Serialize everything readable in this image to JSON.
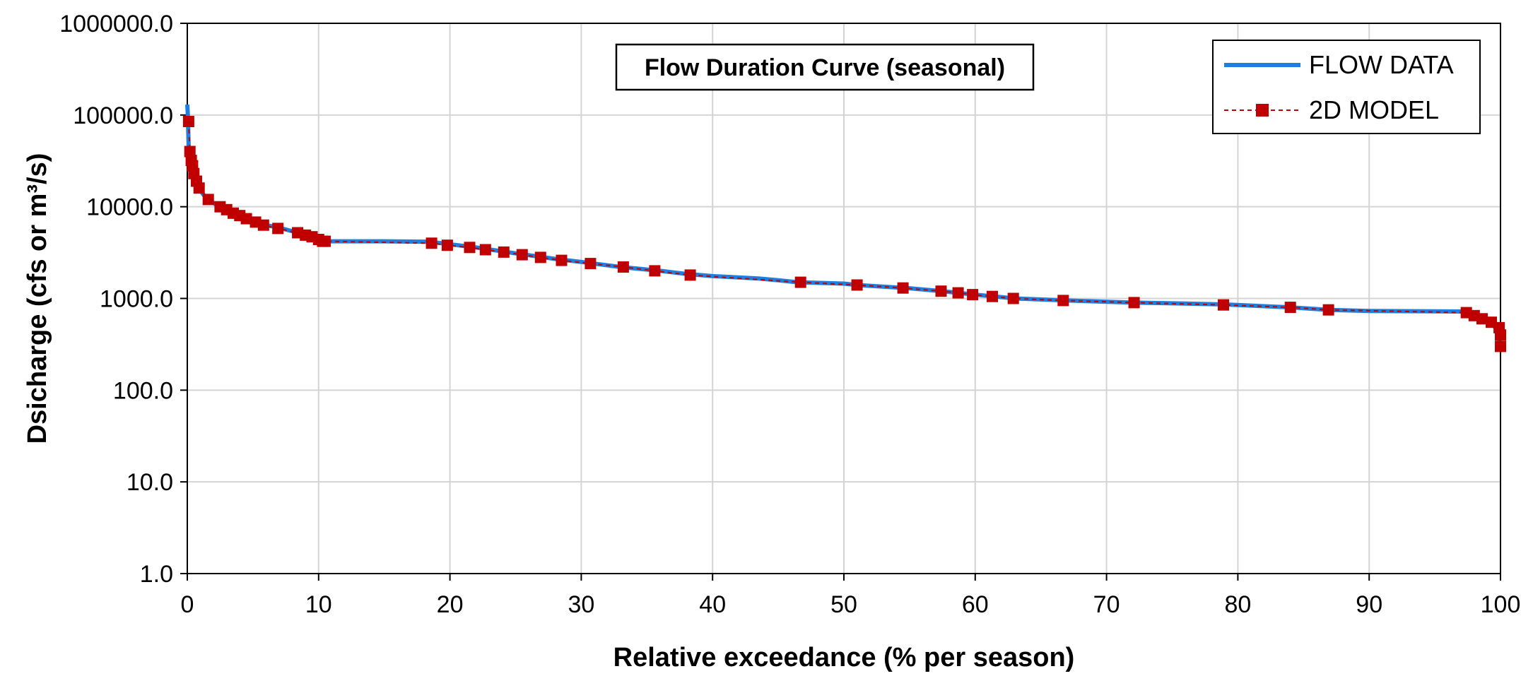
{
  "chart_data": {
    "type": "line",
    "title": "Flow Duration Curve (seasonal)",
    "xlabel": "Relative exceedance (% per season)",
    "ylabel": "Dsicharge (cfs or m³/s)",
    "xlim": [
      0,
      100
    ],
    "ylim": [
      1,
      1000000
    ],
    "yscale": "log",
    "grid": true,
    "legend_position": "top-right",
    "x_ticks": [
      "0",
      "10",
      "20",
      "30",
      "40",
      "50",
      "60",
      "70",
      "80",
      "90",
      "100"
    ],
    "y_ticks": [
      "1.0",
      "10.0",
      "100.0",
      "1000.0",
      "10000.0",
      "100000.0",
      "1000000.0"
    ],
    "series": [
      {
        "name": "FLOW DATA",
        "color": "#1e7fe0",
        "style": "solid",
        "x": [
          0,
          0.05,
          0.1,
          0.2,
          0.3,
          0.5,
          0.7,
          1,
          1.5,
          2,
          2.5,
          3,
          3.5,
          4,
          4.5,
          5,
          6,
          7,
          8,
          9,
          10,
          10.5,
          11,
          15,
          18.5,
          20,
          22,
          25,
          28,
          30,
          33,
          36,
          38,
          40,
          43.5,
          45,
          46.5,
          50,
          51,
          55,
          57.5,
          60,
          63,
          67,
          72,
          76,
          79,
          84,
          87,
          90,
          97,
          98,
          99,
          99.5,
          99.8,
          100
        ],
        "y": [
          130000,
          95000,
          45000,
          35000,
          27000,
          21000,
          18000,
          15000,
          12000,
          11000,
          9800,
          9200,
          8600,
          8100,
          7600,
          7200,
          6300,
          5900,
          5400,
          5000,
          4600,
          4200,
          4200,
          4200,
          4150,
          3900,
          3600,
          3100,
          2700,
          2500,
          2200,
          2000,
          1850,
          1750,
          1650,
          1580,
          1500,
          1450,
          1400,
          1290,
          1200,
          1100,
          1000,
          950,
          900,
          880,
          860,
          800,
          750,
          730,
          720,
          650,
          560,
          500,
          450,
          300
        ]
      },
      {
        "name": "2D MODEL",
        "color": "#c00000",
        "style": "dashed",
        "x": [
          0.1,
          0.2,
          0.3,
          0.4,
          0.5,
          0.7,
          0.9,
          1.6,
          2.5,
          3.0,
          3.5,
          4.0,
          4.5,
          5.2,
          5.8,
          6.9,
          8.4,
          9.0,
          9.5,
          10.0,
          10.3,
          10.5,
          18.6,
          19.8,
          21.5,
          22.7,
          24.1,
          25.5,
          26.9,
          28.5,
          30.7,
          33.2,
          35.6,
          38.3,
          46.7,
          51.0,
          54.5,
          57.4,
          58.7,
          59.8,
          61.3,
          62.9,
          66.7,
          72.1,
          78.9,
          84.0,
          86.9,
          97.4,
          98.0,
          98.6,
          99.3,
          99.9,
          100.0,
          100.0
        ],
        "y": [
          85000,
          40000,
          32000,
          28000,
          23000,
          19000,
          16000,
          12000,
          10000,
          9300,
          8500,
          8000,
          7400,
          6800,
          6300,
          5800,
          5200,
          4900,
          4700,
          4400,
          4200,
          4200,
          4000,
          3800,
          3600,
          3400,
          3200,
          3000,
          2800,
          2600,
          2400,
          2200,
          2000,
          1800,
          1500,
          1400,
          1300,
          1200,
          1150,
          1100,
          1050,
          1000,
          950,
          900,
          850,
          800,
          750,
          700,
          650,
          600,
          550,
          480,
          400,
          300
        ]
      }
    ]
  }
}
